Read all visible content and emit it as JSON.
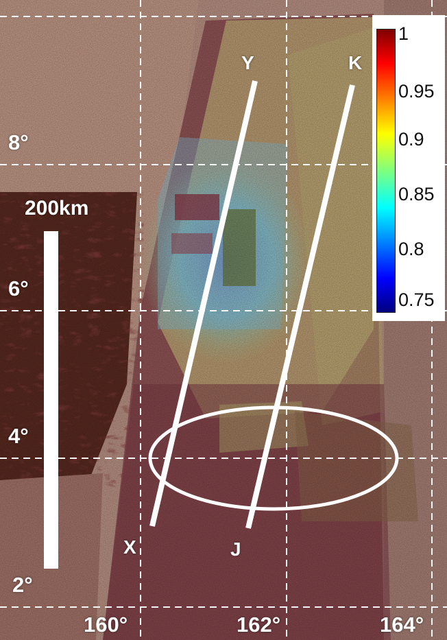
{
  "map": {
    "latitude_labels": [
      {
        "label": "8°",
        "lat": 8
      },
      {
        "label": "6°",
        "lat": 6
      },
      {
        "label": "4°",
        "lat": 4
      },
      {
        "label": "2°",
        "lat": 2
      }
    ],
    "longitude_labels": [
      {
        "label": "160°",
        "lon": 160
      },
      {
        "label": "162°",
        "lon": 162
      },
      {
        "label": "164°",
        "lon": 164
      }
    ],
    "profiles": [
      {
        "id": "X-Y",
        "start_label": "X",
        "end_label": "Y"
      },
      {
        "id": "J-K",
        "start_label": "J",
        "end_label": "K"
      }
    ],
    "scale_bar": {
      "label": "200km",
      "length_km": 200
    },
    "colorbar": {
      "min": 0.75,
      "max": 1,
      "tick_labels": [
        "1",
        "0.95",
        "0.9",
        "0.85",
        "0.8",
        "0.75"
      ],
      "colormap": "jet"
    }
  }
}
